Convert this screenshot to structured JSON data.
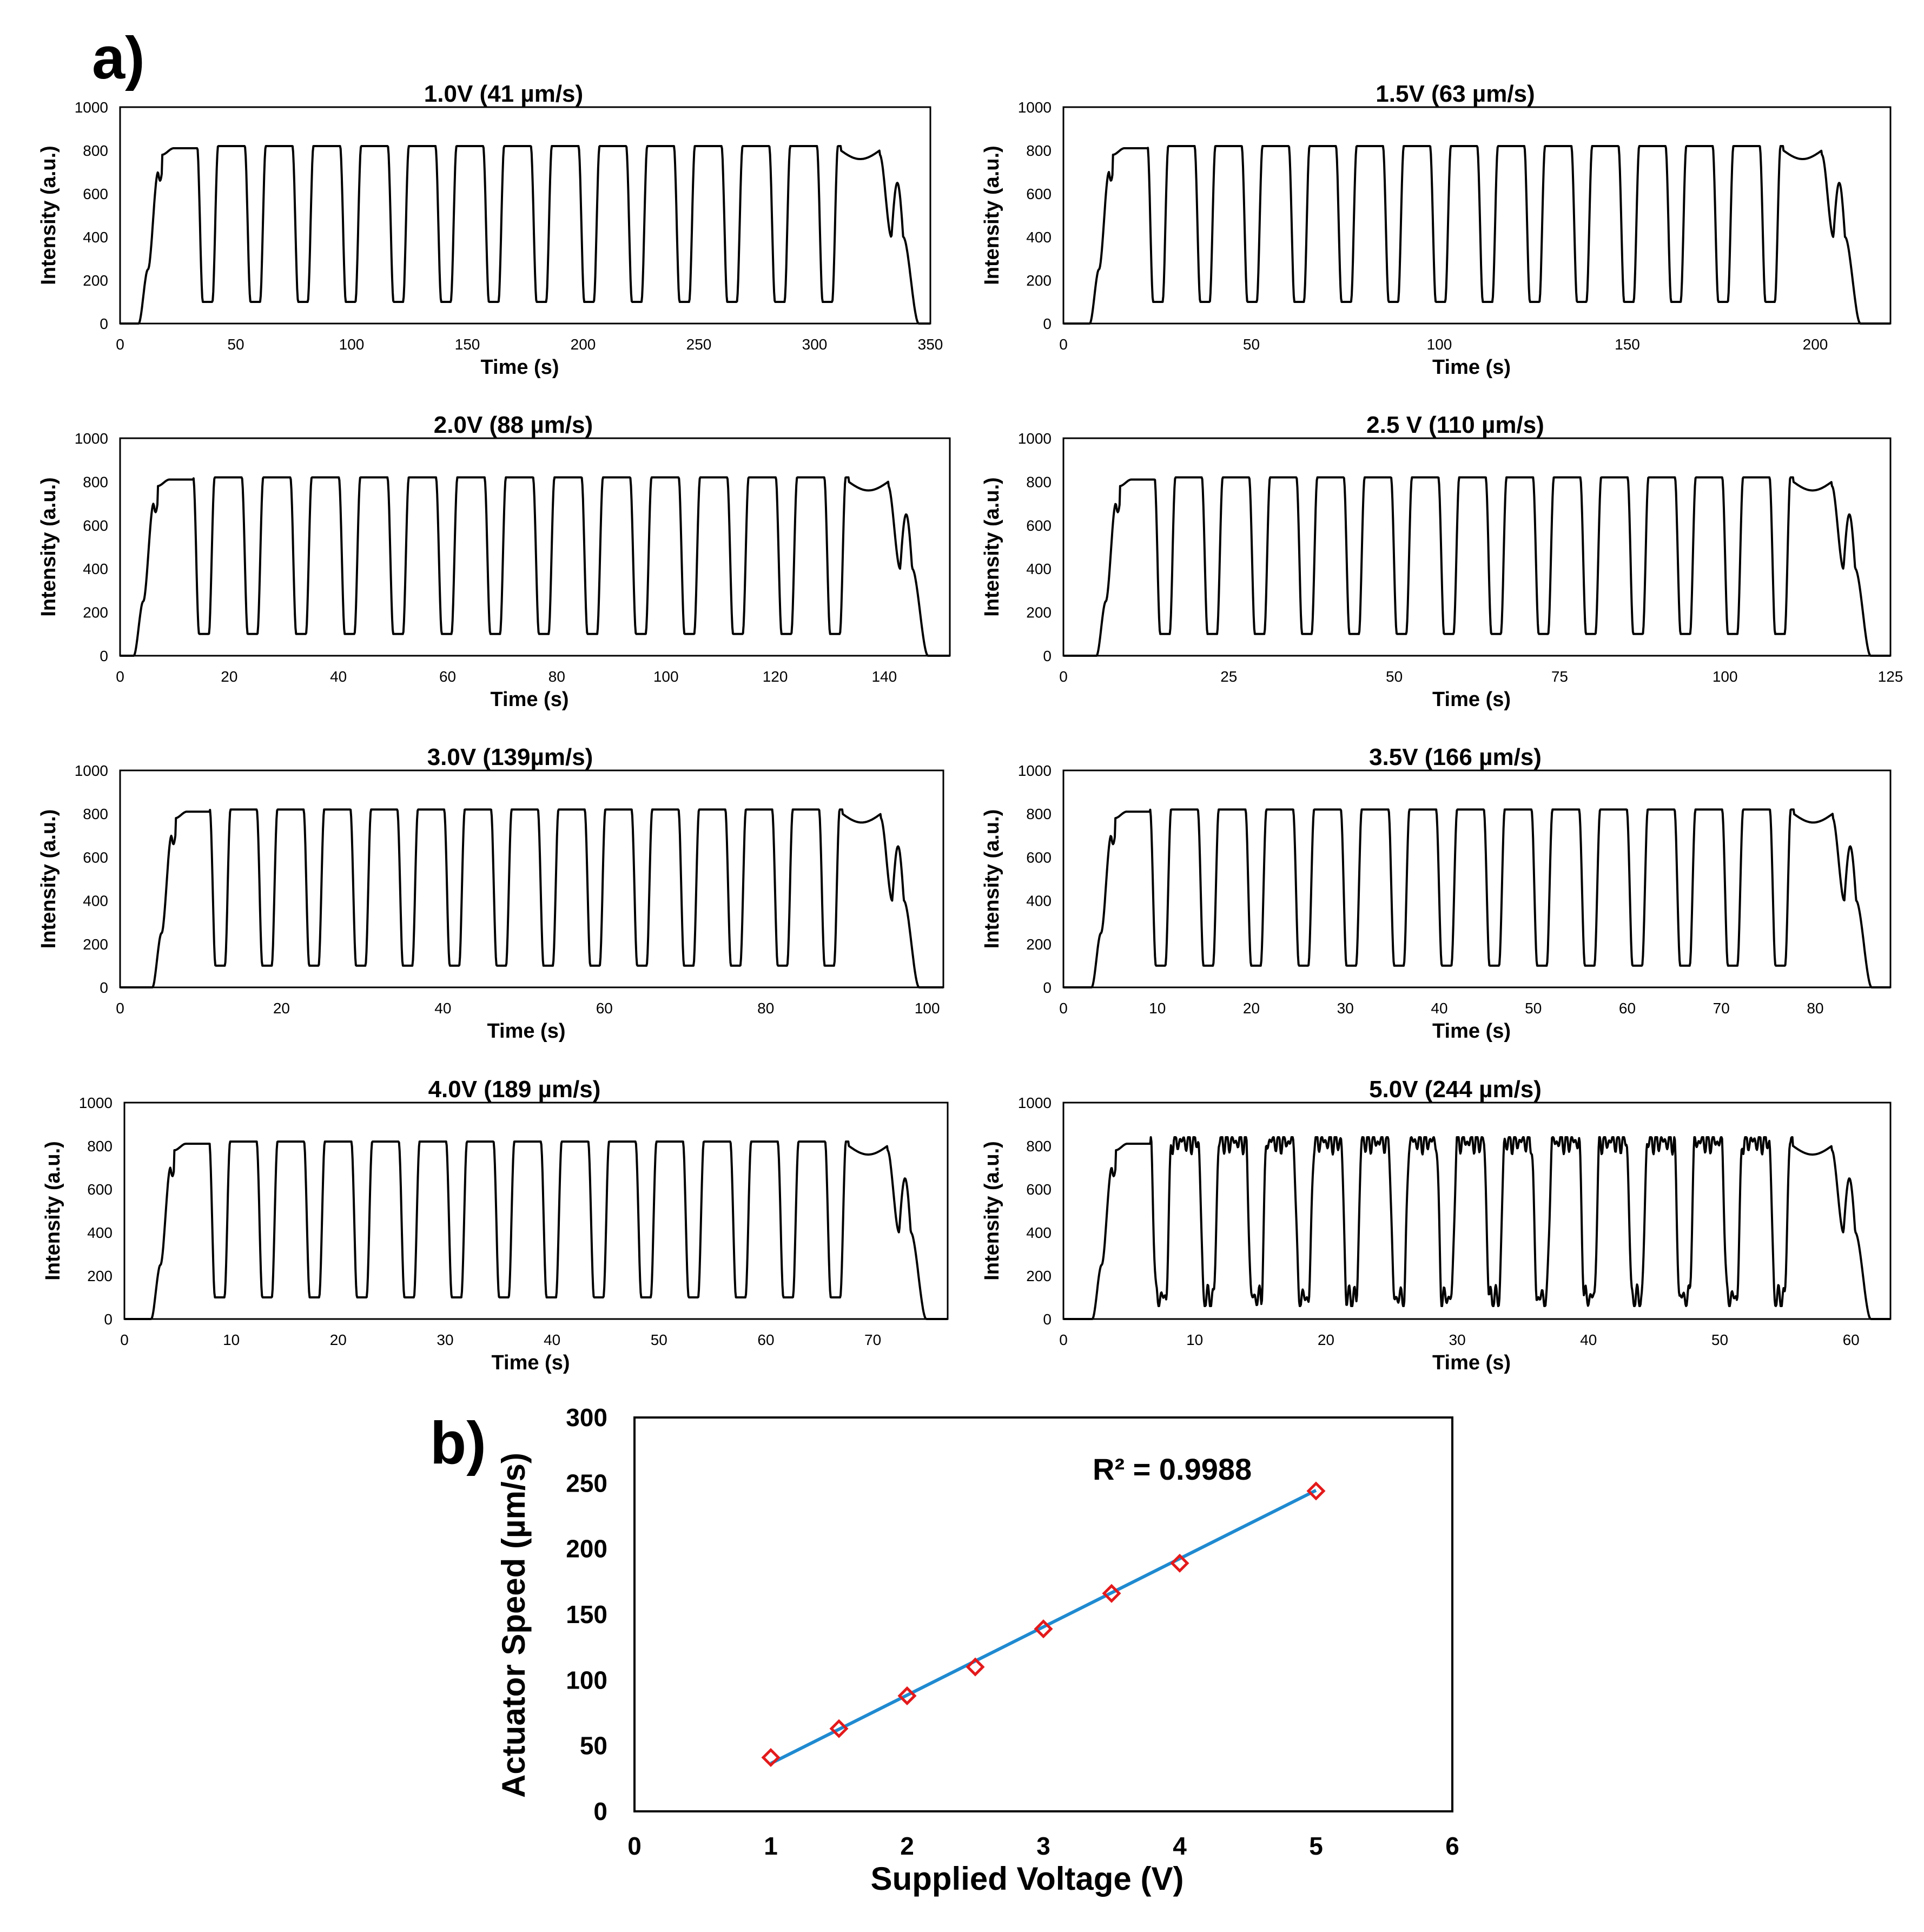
{
  "figure": {
    "label_a": "a)",
    "label_b": "b)"
  },
  "panels_a": [
    {
      "title": "1.0V (41 µm/s)",
      "xlabel": "Time (s)",
      "ylabel": "Intensity (a.u.)",
      "xlim": [
        0,
        350
      ],
      "ylim": [
        0,
        1000
      ],
      "xticks": [
        0,
        50,
        100,
        150,
        200,
        250,
        300,
        350
      ],
      "yticks": [
        0,
        200,
        400,
        600,
        800,
        1000
      ],
      "t_start": 8,
      "t_end": 345
    },
    {
      "title": "1.5V (63 µm/s)",
      "xlabel": "Time (s)",
      "ylabel": "Intensity (a.u.)",
      "xlim": [
        0,
        220
      ],
      "ylim": [
        0,
        1000
      ],
      "xticks": [
        0,
        50,
        100,
        150,
        200
      ],
      "yticks": [
        0,
        200,
        400,
        600,
        800,
        1000
      ],
      "t_start": 7,
      "t_end": 212
    },
    {
      "title": "2.0V (88 µm/s)",
      "xlabel": "Time (s)",
      "ylabel": "Intensity (a.u.)",
      "xlim": [
        0,
        152
      ],
      "ylim": [
        0,
        1000
      ],
      "xticks": [
        0,
        20,
        40,
        60,
        80,
        100,
        120,
        140
      ],
      "yticks": [
        0,
        200,
        400,
        600,
        800,
        1000
      ],
      "t_start": 2.5,
      "t_end": 148
    },
    {
      "title": "2.5 V (110 µm/s)",
      "xlabel": "Time (s)",
      "ylabel": "Intensity (a.u.)",
      "xlim": [
        0,
        125
      ],
      "ylim": [
        0,
        1000
      ],
      "xticks": [
        0,
        25,
        50,
        75,
        100,
        125
      ],
      "yticks": [
        0,
        200,
        400,
        600,
        800,
        1000
      ],
      "t_start": 5,
      "t_end": 122
    },
    {
      "title": "3.0V (139µm/s)",
      "xlabel": "Time (s)",
      "ylabel": "Intensity (a.u.)",
      "xlim": [
        0,
        102
      ],
      "ylim": [
        0,
        1000
      ],
      "xticks": [
        0,
        20,
        40,
        60,
        80,
        100
      ],
      "yticks": [
        0,
        200,
        400,
        600,
        800,
        1000
      ],
      "t_start": 4,
      "t_end": 99
    },
    {
      "title": "3.5V (166 µm/s)",
      "xlabel": "Time (s)",
      "ylabel": "Intensity (a.u.)",
      "xlim": [
        0,
        88
      ],
      "ylim": [
        0,
        1000
      ],
      "xticks": [
        0,
        10,
        20,
        30,
        40,
        50,
        60,
        70,
        80
      ],
      "yticks": [
        0,
        200,
        400,
        600,
        800,
        1000
      ],
      "t_start": 3,
      "t_end": 86
    },
    {
      "title": "4.0V (189 µm/s)",
      "xlabel": "Time (s)",
      "ylabel": "Intensity (a.u.)",
      "xlim": [
        0,
        77
      ],
      "ylim": [
        0,
        1000
      ],
      "xticks": [
        0,
        10,
        20,
        30,
        40,
        50,
        60,
        70
      ],
      "yticks": [
        0,
        200,
        400,
        600,
        800,
        1000
      ],
      "t_start": 2.5,
      "t_end": 75
    },
    {
      "title": "5.0V (244 µm/s)",
      "xlabel": "Time (s)",
      "ylabel": "Intensity (a.u.)",
      "xlim": [
        0,
        63
      ],
      "ylim": [
        0,
        1000
      ],
      "xticks": [
        0,
        10,
        20,
        30,
        40,
        50,
        60
      ],
      "yticks": [
        0,
        200,
        400,
        600,
        800,
        1000
      ],
      "t_start": 2.2,
      "t_end": 61.5
    }
  ],
  "chart_data": [
    {
      "type": "scatter",
      "title": "",
      "xlabel": "Supplied Voltage (V)",
      "ylabel": "Actuator Speed (µm/s)",
      "xlim": [
        0,
        6
      ],
      "ylim": [
        0,
        300
      ],
      "xticks": [
        0,
        1,
        2,
        3,
        4,
        5,
        6
      ],
      "yticks": [
        0,
        50,
        100,
        150,
        200,
        250,
        300
      ],
      "annotation": "R² = 0.9988",
      "marker_color": "#e31a1c",
      "trendline_color": "#1f8ad0",
      "x": [
        1.0,
        1.5,
        2.0,
        2.5,
        3.0,
        3.5,
        4.0,
        5.0
      ],
      "y": [
        41,
        63,
        88,
        110,
        139,
        166,
        189,
        244
      ],
      "trendline": {
        "x": [
          1.0,
          5.0
        ],
        "y": [
          36.5,
          244.5
        ]
      }
    }
  ]
}
